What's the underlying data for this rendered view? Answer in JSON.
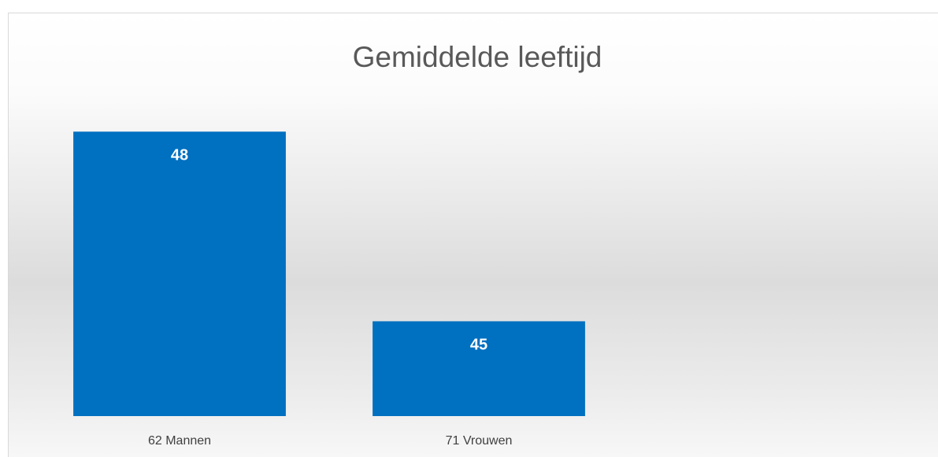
{
  "chart_data": {
    "type": "bar",
    "title": "Gemiddelde leeftijd",
    "categories": [
      "62 Mannen",
      "71 Vrouwen"
    ],
    "values": [
      48,
      45
    ],
    "color": "#0070c0",
    "ylim": [
      43.5,
      49
    ],
    "data_labels": true
  }
}
